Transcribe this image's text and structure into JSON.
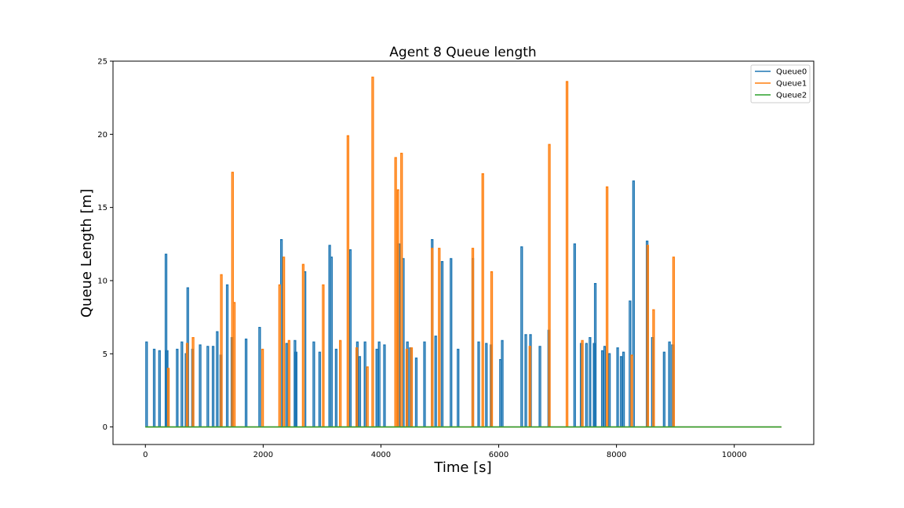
{
  "chart_data": {
    "type": "line",
    "title": "Agent 8 Queue length",
    "xlabel": "Time [s]",
    "ylabel": "Queue Length [m]",
    "xlim": [
      -550,
      11350
    ],
    "ylim": [
      -1.2,
      25
    ],
    "xticks": [
      0,
      2000,
      4000,
      6000,
      8000,
      10000
    ],
    "yticks": [
      0,
      5,
      10,
      15,
      20,
      25
    ],
    "legend_position": "top-right",
    "x_end": 10800,
    "series": [
      {
        "name": "Queue0",
        "color": "#1f77b4",
        "spikes": [
          [
            20,
            5.8
          ],
          [
            150,
            5.3
          ],
          [
            240,
            5.2
          ],
          [
            350,
            11.8
          ],
          [
            370,
            5.2
          ],
          [
            540,
            5.3
          ],
          [
            620,
            5.8
          ],
          [
            690,
            5.0
          ],
          [
            720,
            9.5
          ],
          [
            800,
            5.3
          ],
          [
            930,
            5.6
          ],
          [
            1060,
            5.5
          ],
          [
            1150,
            5.5
          ],
          [
            1220,
            6.5
          ],
          [
            1280,
            4.9
          ],
          [
            1390,
            9.7
          ],
          [
            1470,
            6.1
          ],
          [
            1710,
            6.0
          ],
          [
            1940,
            6.8
          ],
          [
            2310,
            12.8
          ],
          [
            2400,
            5.7
          ],
          [
            2540,
            5.9
          ],
          [
            2560,
            5.1
          ],
          [
            2710,
            10.6
          ],
          [
            2860,
            5.8
          ],
          [
            2960,
            5.1
          ],
          [
            3130,
            12.4
          ],
          [
            3160,
            11.6
          ],
          [
            3240,
            5.3
          ],
          [
            3480,
            12.1
          ],
          [
            3600,
            5.8
          ],
          [
            3640,
            4.8
          ],
          [
            3730,
            5.8
          ],
          [
            3930,
            5.3
          ],
          [
            3970,
            5.8
          ],
          [
            4060,
            5.6
          ],
          [
            4310,
            12.5
          ],
          [
            4380,
            11.5
          ],
          [
            4450,
            5.8
          ],
          [
            4500,
            5.4
          ],
          [
            4600,
            4.7
          ],
          [
            4740,
            5.8
          ],
          [
            4870,
            12.8
          ],
          [
            4930,
            6.2
          ],
          [
            5040,
            11.3
          ],
          [
            5190,
            11.5
          ],
          [
            5310,
            5.3
          ],
          [
            5560,
            11.5
          ],
          [
            5660,
            5.8
          ],
          [
            5790,
            5.7
          ],
          [
            5870,
            5.6
          ],
          [
            6030,
            4.6
          ],
          [
            6060,
            5.9
          ],
          [
            6390,
            12.3
          ],
          [
            6460,
            6.3
          ],
          [
            6540,
            6.3
          ],
          [
            6700,
            5.5
          ],
          [
            6850,
            6.6
          ],
          [
            7290,
            12.5
          ],
          [
            7400,
            5.7
          ],
          [
            7490,
            5.7
          ],
          [
            7550,
            6.1
          ],
          [
            7620,
            5.7
          ],
          [
            7640,
            9.8
          ],
          [
            7760,
            5.2
          ],
          [
            7800,
            5.5
          ],
          [
            7880,
            5.0
          ],
          [
            8020,
            5.4
          ],
          [
            8080,
            4.8
          ],
          [
            8120,
            5.1
          ],
          [
            8230,
            8.6
          ],
          [
            8290,
            16.8
          ],
          [
            8520,
            12.7
          ],
          [
            8610,
            6.1
          ],
          [
            8810,
            5.1
          ],
          [
            8900,
            5.8
          ],
          [
            8950,
            5.6
          ]
        ]
      },
      {
        "name": "Queue1",
        "color": "#ff7f0e",
        "spikes": [
          [
            390,
            4.0
          ],
          [
            710,
            5.7
          ],
          [
            810,
            6.1
          ],
          [
            1290,
            10.4
          ],
          [
            1480,
            17.4
          ],
          [
            1510,
            8.5
          ],
          [
            1990,
            5.3
          ],
          [
            2280,
            9.7
          ],
          [
            2350,
            11.6
          ],
          [
            2440,
            5.9
          ],
          [
            2680,
            11.1
          ],
          [
            3020,
            9.7
          ],
          [
            3310,
            5.9
          ],
          [
            3440,
            19.9
          ],
          [
            3590,
            5.4
          ],
          [
            3770,
            4.1
          ],
          [
            3860,
            23.9
          ],
          [
            4250,
            18.4
          ],
          [
            4290,
            16.2
          ],
          [
            4350,
            18.7
          ],
          [
            4440,
            5.3
          ],
          [
            4520,
            5.4
          ],
          [
            4870,
            12.2
          ],
          [
            4990,
            12.2
          ],
          [
            5560,
            12.2
          ],
          [
            5730,
            17.3
          ],
          [
            5880,
            10.6
          ],
          [
            6530,
            5.5
          ],
          [
            6860,
            19.3
          ],
          [
            7160,
            23.6
          ],
          [
            7420,
            5.9
          ],
          [
            7840,
            16.4
          ],
          [
            8260,
            4.9
          ],
          [
            8530,
            12.4
          ],
          [
            8630,
            8.0
          ],
          [
            8970,
            11.6
          ]
        ]
      },
      {
        "name": "Queue2",
        "color": "#2ca02c",
        "spikes": []
      }
    ]
  }
}
